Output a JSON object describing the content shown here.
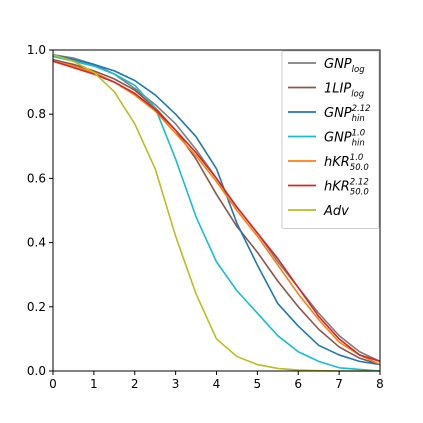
{
  "chart_data": {
    "type": "line",
    "title": "",
    "xlabel": "",
    "ylabel": "",
    "xlim": [
      0,
      8
    ],
    "ylim": [
      0,
      1
    ],
    "x_ticks": [
      "0",
      "1",
      "2",
      "3",
      "4",
      "5",
      "6",
      "7",
      "8"
    ],
    "y_ticks": [
      "0.0",
      "0.2",
      "0.4",
      "0.6",
      "0.8",
      "1.0"
    ],
    "grid": false,
    "legend_position": "top-right",
    "series": [
      {
        "name": "GNP_log",
        "legend": {
          "base": "GNP",
          "sub": "log",
          "sup": ""
        },
        "color": "#7f7f7f",
        "points": [
          [
            0,
            0.985
          ],
          [
            0.5,
            0.975
          ],
          [
            1,
            0.955
          ],
          [
            1.5,
            0.925
          ],
          [
            2,
            0.88
          ],
          [
            2.5,
            0.83
          ],
          [
            3,
            0.77
          ],
          [
            3.5,
            0.69
          ],
          [
            4,
            0.6
          ],
          [
            4.5,
            0.51
          ],
          [
            5,
            0.43
          ],
          [
            5.5,
            0.34
          ],
          [
            6,
            0.26
          ],
          [
            6.5,
            0.18
          ],
          [
            7,
            0.11
          ],
          [
            7.5,
            0.06
          ],
          [
            8,
            0.03
          ]
        ]
      },
      {
        "name": "1LIP_log",
        "legend": {
          "base": "1LIP",
          "sub": "log",
          "sup": ""
        },
        "color": "#8c564b",
        "points": [
          [
            0,
            0.97
          ],
          [
            0.5,
            0.955
          ],
          [
            1,
            0.935
          ],
          [
            1.5,
            0.91
          ],
          [
            2,
            0.875
          ],
          [
            2.5,
            0.82
          ],
          [
            3,
            0.75
          ],
          [
            3.5,
            0.66
          ],
          [
            4,
            0.55
          ],
          [
            4.5,
            0.45
          ],
          [
            5,
            0.37
          ],
          [
            5.5,
            0.28
          ],
          [
            6,
            0.2
          ],
          [
            6.5,
            0.13
          ],
          [
            7,
            0.075
          ],
          [
            7.5,
            0.04
          ],
          [
            8,
            0.02
          ]
        ]
      },
      {
        "name": "GNP_hin^2.12",
        "legend": {
          "base": "GNP",
          "sub": "hin",
          "sup": "2.12"
        },
        "color": "#1f77b4",
        "points": [
          [
            0,
            0.985
          ],
          [
            0.5,
            0.97
          ],
          [
            1,
            0.955
          ],
          [
            1.5,
            0.935
          ],
          [
            2,
            0.905
          ],
          [
            2.5,
            0.86
          ],
          [
            3,
            0.8
          ],
          [
            3.5,
            0.73
          ],
          [
            4,
            0.63
          ],
          [
            4.5,
            0.46
          ],
          [
            5,
            0.33
          ],
          [
            5.5,
            0.21
          ],
          [
            6,
            0.14
          ],
          [
            6.5,
            0.08
          ],
          [
            7,
            0.05
          ],
          [
            7.5,
            0.03
          ],
          [
            8,
            0.02
          ]
        ]
      },
      {
        "name": "GNP_hin^1.0",
        "legend": {
          "base": "GNP",
          "sub": "hin",
          "sup": "1.0"
        },
        "color": "#17becf",
        "points": [
          [
            0,
            0.98
          ],
          [
            0.5,
            0.965
          ],
          [
            1,
            0.95
          ],
          [
            1.5,
            0.925
          ],
          [
            2,
            0.89
          ],
          [
            2.5,
            0.82
          ],
          [
            3,
            0.66
          ],
          [
            3.5,
            0.48
          ],
          [
            4,
            0.34
          ],
          [
            4.5,
            0.25
          ],
          [
            5,
            0.18
          ],
          [
            5.5,
            0.11
          ],
          [
            6,
            0.06
          ],
          [
            6.5,
            0.03
          ],
          [
            7,
            0.01
          ],
          [
            7.5,
            0.005
          ],
          [
            8,
            0.0
          ]
        ]
      },
      {
        "name": "hKR_50.0^1.0",
        "legend": {
          "base": "hKR",
          "sub": "50.0",
          "sup": "1.0"
        },
        "color": "#ff7f0e",
        "points": [
          [
            0,
            0.965
          ],
          [
            0.5,
            0.95
          ],
          [
            1,
            0.93
          ],
          [
            1.5,
            0.9
          ],
          [
            2,
            0.86
          ],
          [
            2.5,
            0.81
          ],
          [
            3,
            0.74
          ],
          [
            3.5,
            0.67
          ],
          [
            4,
            0.59
          ],
          [
            4.5,
            0.5
          ],
          [
            5,
            0.42
          ],
          [
            5.5,
            0.33
          ],
          [
            6,
            0.24
          ],
          [
            6.5,
            0.16
          ],
          [
            7,
            0.09
          ],
          [
            7.5,
            0.05
          ],
          [
            8,
            0.02
          ]
        ]
      },
      {
        "name": "hKR_50.0^2.12",
        "legend": {
          "base": "hKR",
          "sub": "50.0",
          "sup": "2.12"
        },
        "color": "#d62728",
        "points": [
          [
            0,
            0.965
          ],
          [
            0.5,
            0.945
          ],
          [
            1,
            0.925
          ],
          [
            1.5,
            0.9
          ],
          [
            2,
            0.865
          ],
          [
            2.5,
            0.815
          ],
          [
            3,
            0.75
          ],
          [
            3.5,
            0.68
          ],
          [
            4,
            0.6
          ],
          [
            4.5,
            0.51
          ],
          [
            5,
            0.43
          ],
          [
            5.5,
            0.35
          ],
          [
            6,
            0.26
          ],
          [
            6.5,
            0.17
          ],
          [
            7,
            0.1
          ],
          [
            7.5,
            0.05
          ],
          [
            8,
            0.03
          ]
        ]
      },
      {
        "name": "Adv",
        "legend": {
          "base": "Adv",
          "sub": "",
          "sup": ""
        },
        "color": "#bcbd22",
        "points": [
          [
            0,
            0.985
          ],
          [
            0.5,
            0.965
          ],
          [
            1,
            0.93
          ],
          [
            1.5,
            0.87
          ],
          [
            2,
            0.77
          ],
          [
            2.5,
            0.63
          ],
          [
            3,
            0.42
          ],
          [
            3.5,
            0.24
          ],
          [
            4,
            0.1
          ],
          [
            4.5,
            0.045
          ],
          [
            5,
            0.02
          ],
          [
            5.5,
            0.008
          ],
          [
            6,
            0.003
          ],
          [
            6.5,
            0.001
          ],
          [
            7,
            0.0
          ],
          [
            8,
            0.0
          ]
        ]
      }
    ]
  }
}
